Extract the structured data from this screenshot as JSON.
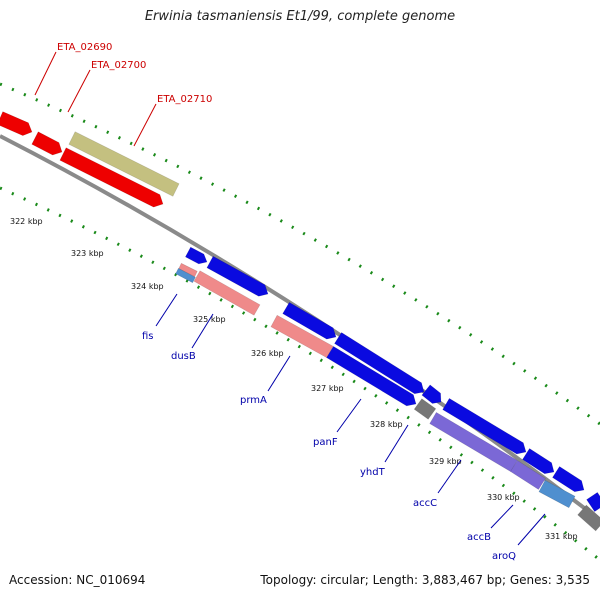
{
  "title": "Erwinia tasmaniensis Et1/99, complete genome",
  "footer": {
    "accession": "Accession: NC_010694",
    "topology": "Topology: circular; Length: 3,883,467 bp; Genes: 3,535"
  },
  "colors": {
    "backbone": "#8a8a8a",
    "forward_blue": "#0a0ae0",
    "reverse_red": "#ee0000",
    "pseudo_olive": "#c4c080",
    "pink": "#ef8a8a",
    "purple": "#7b68d6",
    "steel": "#4f8fcf",
    "grey": "#777777",
    "ticks": "#1a8a1a",
    "label_red": "#cc0000",
    "label_blue": "#0000aa"
  },
  "kbp_labels": [
    "322 kbp",
    "323 kbp",
    "324 kbp",
    "325 kbp",
    "326 kbp",
    "327 kbp",
    "328 kbp",
    "329 kbp",
    "330 kbp",
    "331 kbp"
  ],
  "genes_top": [
    {
      "name": "ETA_02690"
    },
    {
      "name": "ETA_02700"
    },
    {
      "name": "ETA_02710"
    }
  ],
  "genes_bottom": [
    {
      "name": "fis"
    },
    {
      "name": "dusB"
    },
    {
      "name": "prmA"
    },
    {
      "name": "panF"
    },
    {
      "name": "yhdT"
    },
    {
      "name": "accC"
    },
    {
      "name": "accB"
    },
    {
      "name": "aroQ"
    }
  ]
}
